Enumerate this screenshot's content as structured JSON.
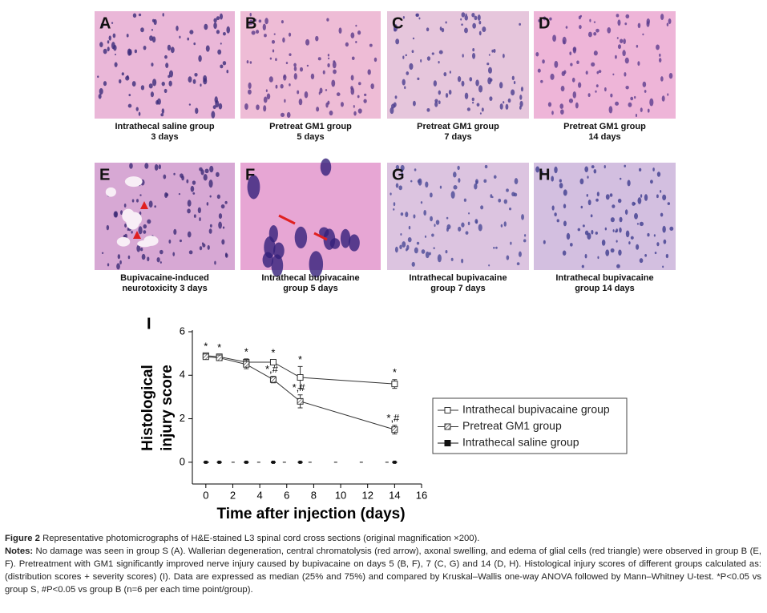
{
  "panels": [
    {
      "letter": "A",
      "caption": [
        "Intrathecal saline group",
        "3 days"
      ]
    },
    {
      "letter": "B",
      "caption": [
        "Pretreat GM1 group",
        "5 days"
      ]
    },
    {
      "letter": "C",
      "caption": [
        "Pretreat GM1 group",
        "7 days"
      ]
    },
    {
      "letter": "D",
      "caption": [
        "Pretreat GM1 group",
        "14 days"
      ]
    },
    {
      "letter": "E",
      "caption": [
        "Bupivacaine-induced",
        "neurotoxicity 3 days"
      ]
    },
    {
      "letter": "F",
      "caption": [
        "Intrathecal bupivacaine",
        "group 5 days"
      ]
    },
    {
      "letter": "G",
      "caption": [
        "Intrathecal bupivacaine",
        "group 7 days"
      ]
    },
    {
      "letter": "H",
      "caption": [
        "Intrathecal bupivacaine",
        "group 14 days"
      ]
    }
  ],
  "chart_data": {
    "type": "line",
    "panel_label": "I",
    "y_label": [
      "Histological",
      "injury score"
    ],
    "x_label": "Time after injection (days)",
    "x": [
      0,
      1,
      3,
      5,
      7,
      14
    ],
    "series": [
      {
        "name": "Intrathecal bupivacaine group",
        "color": "#333333",
        "marker": "open",
        "values": [
          4.9,
          4.85,
          4.6,
          4.6,
          3.9,
          3.6
        ],
        "errors": [
          0.1,
          0.1,
          0.15,
          0.1,
          0.5,
          0.2
        ],
        "value_labels": [
          "*",
          "*",
          "*",
          "*",
          "*",
          "*"
        ]
      },
      {
        "name": "Pretreat GM1 group",
        "color": "#333333",
        "marker": "hatched",
        "values": [
          4.85,
          4.8,
          4.5,
          3.8,
          2.8,
          1.5
        ],
        "errors": [
          0.1,
          0.1,
          0.2,
          0.15,
          0.3,
          0.2
        ],
        "value_labels": [
          null,
          null,
          null,
          "*,#",
          "*,#",
          "*,#"
        ]
      },
      {
        "name": "Intrathecal saline group",
        "color": "#111111",
        "marker": "filled",
        "values": [
          0,
          0,
          0,
          0,
          0,
          0
        ]
      }
    ],
    "xlim": [
      -1,
      16
    ],
    "xticks": [
      0,
      2,
      4,
      6,
      8,
      10,
      12,
      14,
      16
    ],
    "ylim": [
      -1,
      6
    ],
    "yticks": [
      0,
      2,
      4,
      6
    ],
    "legend": "right"
  },
  "caption": {
    "figure_label": "Figure 2",
    "figure_text": "Representative photomicrographs of H&E-stained L3 spinal cord cross sections (original magnification ×200).",
    "notes_label": "Notes:",
    "notes_text": "No damage was seen in group S (A). Wallerian degeneration, central chromatolysis (red arrow), axonal swelling, and edema of glial cells (red triangle) were observed in group B (E, F). Pretreatment with GM1 significantly improved nerve injury caused by bupivacaine on days 5 (B, F), 7 (C, G) and 14 (D, H). Histological injury scores of different groups calculated as: (distribution scores + severity scores) (I). Data are expressed as median (25% and 75%) and compared by Kruskal–Wallis one-way ANOVA followed by Mann–Whitney U-test. *P<0.05 vs group S, #P<0.05 vs group B (n=6 per each time point/group)."
  }
}
